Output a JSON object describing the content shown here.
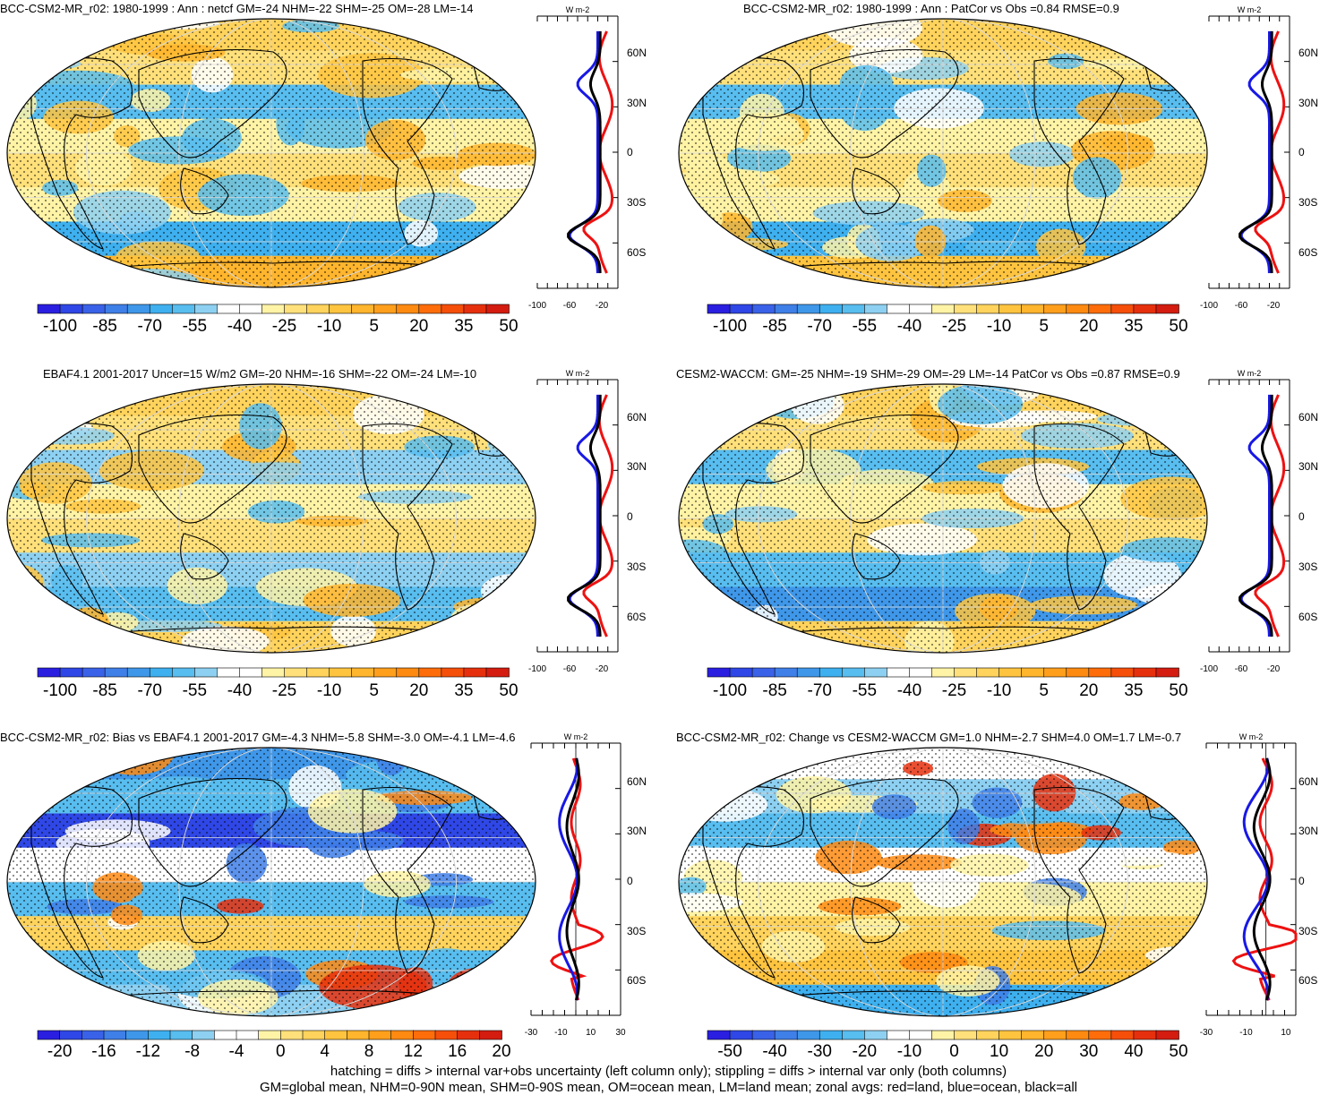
{
  "panels": [
    {
      "id": "p1",
      "title": "BCC-CSM2-MR_r02: 1980-1999 : Ann : netcf GM=-24 NHM=-22 SHM=-25 OM=-28 LM=-14",
      "colorbar_ticks": [
        "-100",
        "-85",
        "-70",
        "-55",
        "-40",
        "-25",
        "-10",
        "5",
        "20",
        "35",
        "50"
      ],
      "profile_xticks": [
        "-100",
        "-60",
        "-20"
      ],
      "profile_unit": "W m-2",
      "profile_lat_labels": [
        "60N",
        "30N",
        "0",
        "30S",
        "60S"
      ],
      "palette": "main"
    },
    {
      "id": "p2",
      "title": "BCC-CSM2-MR_r02: 1980-1999 : Ann : PatCor vs Obs =0.84 RMSE=0.9",
      "colorbar_ticks": [
        "-100",
        "-85",
        "-70",
        "-55",
        "-40",
        "-25",
        "-10",
        "5",
        "20",
        "35",
        "50"
      ],
      "profile_xticks": [
        "-100",
        "-60",
        "-20"
      ],
      "profile_unit": "W m-2",
      "profile_lat_labels": [
        "60N",
        "30N",
        "0",
        "30S",
        "60S"
      ],
      "palette": "main"
    },
    {
      "id": "p3",
      "title": "EBAF4.1 2001-2017 Uncer=15 W/m2 GM=-20 NHM=-16 SHM=-22 OM=-24 LM=-10",
      "colorbar_ticks": [
        "-100",
        "-85",
        "-70",
        "-55",
        "-40",
        "-25",
        "-10",
        "5",
        "20",
        "35",
        "50"
      ],
      "profile_xticks": [
        "-100",
        "-60",
        "-20"
      ],
      "profile_unit": "W m-2",
      "profile_lat_labels": [
        "60N",
        "30N",
        "0",
        "30S",
        "60S"
      ],
      "palette": "main"
    },
    {
      "id": "p4",
      "title": "CESM2-WACCM: GM=-25 NHM=-19 SHM=-29 OM=-29 LM=-14 PatCor vs Obs =0.87 RMSE=0.9",
      "colorbar_ticks": [
        "-100",
        "-85",
        "-70",
        "-55",
        "-40",
        "-25",
        "-10",
        "5",
        "20",
        "35",
        "50"
      ],
      "profile_xticks": [
        "-100",
        "-60",
        "-20"
      ],
      "profile_unit": "W m-2",
      "profile_lat_labels": [
        "60N",
        "30N",
        "0",
        "30S",
        "60S"
      ],
      "palette": "main"
    },
    {
      "id": "p5",
      "title": "BCC-CSM2-MR_r02: Bias vs EBAF4.1 2001-2017 GM=-4.3 NHM=-5.8 SHM=-3.0 OM=-4.1 LM=-4.6",
      "colorbar_ticks": [
        "-20",
        "-16",
        "-12",
        "-8",
        "-4",
        "0",
        "4",
        "8",
        "12",
        "16",
        "20"
      ],
      "profile_xticks": [
        "-30",
        "-10",
        "10",
        "30"
      ],
      "profile_unit": "W m-2",
      "profile_lat_labels": [
        "60N",
        "30N",
        "0",
        "30S",
        "60S"
      ],
      "palette": "diff"
    },
    {
      "id": "p6",
      "title": "BCC-CSM2-MR_r02: Change vs CESM2-WACCM GM=1.0 NHM=-2.7 SHM=4.0 OM=1.7 LM=-0.7",
      "colorbar_ticks": [
        "-50",
        "-40",
        "-30",
        "-20",
        "-10",
        "0",
        "10",
        "20",
        "30",
        "40",
        "50"
      ],
      "profile_xticks": [
        "-30",
        "-10",
        "10"
      ],
      "profile_unit": "W m-2",
      "profile_lat_labels": [
        "60N",
        "30N",
        "0",
        "30S",
        "60S"
      ],
      "palette": "diff"
    }
  ],
  "colors": {
    "main_palette": [
      "#2a1fe0",
      "#2f47e6",
      "#3a62e8",
      "#3f7fe8",
      "#3f97e9",
      "#3eb0ef",
      "#58bdef",
      "#8dd0f1",
      "#ffffff",
      "#ffffff",
      "#fff3a6",
      "#ffe07a",
      "#ffd35c",
      "#ffc43f",
      "#ffb52d",
      "#ff9f1c",
      "#ff8a12",
      "#ff6d0a",
      "#f54f0a",
      "#e6300d",
      "#d41c10"
    ],
    "zonal_land": "#ee1111",
    "zonal_ocean": "#1818e6",
    "zonal_all": "#000000"
  },
  "footer": {
    "line1": "hatching = diffs > internal var+obs uncertainty (left column only); stippling = diffs > internal var only (both columns)",
    "line2": "GM=global mean, NHM=0-90N mean, SHM=0-90S mean, OM=ocean mean, LM=land mean; zonal avgs: red=land, blue=ocean, black=all"
  }
}
